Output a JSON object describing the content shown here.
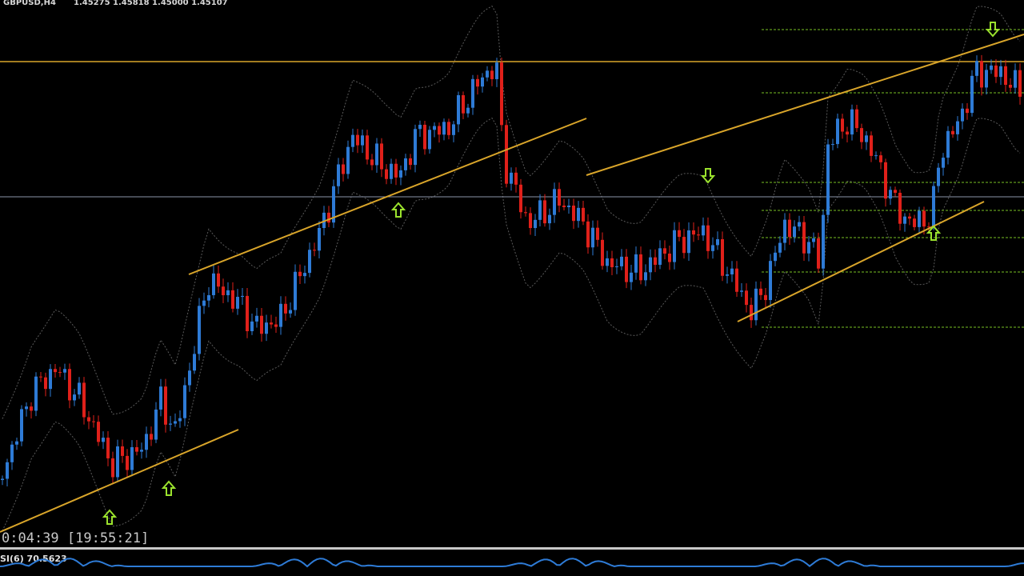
{
  "header": {
    "symbol": "GBPUSD,H4",
    "quote": "1.45275 1.45818 1.45000 1.45107"
  },
  "timer": "0:04:39 [19:55:21]",
  "indicator": "SI(6) 70.5623"
}
